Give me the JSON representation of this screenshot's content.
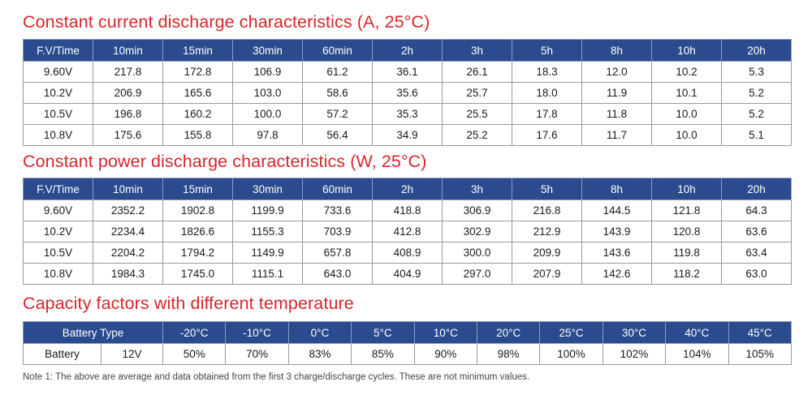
{
  "current": {
    "title": "Constant current discharge characteristics (A, 25°C)",
    "headers": [
      "F.V/Time",
      "10min",
      "15min",
      "30min",
      "60min",
      "2h",
      "3h",
      "5h",
      "8h",
      "10h",
      "20h"
    ],
    "rows": [
      [
        "9.60V",
        "217.8",
        "172.8",
        "106.9",
        "61.2",
        "36.1",
        "26.1",
        "18.3",
        "12.0",
        "10.2",
        "5.3"
      ],
      [
        "10.2V",
        "206.9",
        "165.6",
        "103.0",
        "58.6",
        "35.6",
        "25.7",
        "18.0",
        "11.9",
        "10.1",
        "5.2"
      ],
      [
        "10.5V",
        "196.8",
        "160.2",
        "100.0",
        "57.2",
        "35.3",
        "25.5",
        "17.8",
        "11.8",
        "10.0",
        "5.2"
      ],
      [
        "10.8V",
        "175.6",
        "155.8",
        "97.8",
        "56.4",
        "34.9",
        "25.2",
        "17.6",
        "11.7",
        "10.0",
        "5.1"
      ]
    ]
  },
  "power": {
    "title": "Constant power discharge characteristics (W, 25°C)",
    "headers": [
      "F.V/Time",
      "10min",
      "15min",
      "30min",
      "60min",
      "2h",
      "3h",
      "5h",
      "8h",
      "10h",
      "20h"
    ],
    "rows": [
      [
        "9.60V",
        "2352.2",
        "1902.8",
        "1199.9",
        "733.6",
        "418.8",
        "306.9",
        "216.8",
        "144.5",
        "121.8",
        "64.3"
      ],
      [
        "10.2V",
        "2234.4",
        "1826.6",
        "1155.3",
        "703.9",
        "412.8",
        "302.9",
        "212.9",
        "143.9",
        "120.8",
        "63.6"
      ],
      [
        "10.5V",
        "2204.2",
        "1794.2",
        "1149.9",
        "657.8",
        "408.9",
        "300.0",
        "209.9",
        "143.6",
        "119.8",
        "63.4"
      ],
      [
        "10.8V",
        "1984.3",
        "1745.0",
        "1115.1",
        "643.0",
        "404.9",
        "297.0",
        "207.9",
        "142.6",
        "118.2",
        "63.0"
      ]
    ]
  },
  "capacity": {
    "title": "Capacity factors with different temperature",
    "type_header": "Battery Type",
    "temps": [
      "-20°C",
      "-10°C",
      "0°C",
      "5°C",
      "10°C",
      "20°C",
      "25°C",
      "30°C",
      "40°C",
      "45°C"
    ],
    "battery_label": "Battery",
    "voltage": "12V",
    "values": [
      "50%",
      "70%",
      "83%",
      "85%",
      "90%",
      "98%",
      "100%",
      "102%",
      "104%",
      "105%"
    ]
  },
  "note": "Note 1: The above are average and data obtained from the first 3 charge/discharge cycles. These are not minimum values."
}
